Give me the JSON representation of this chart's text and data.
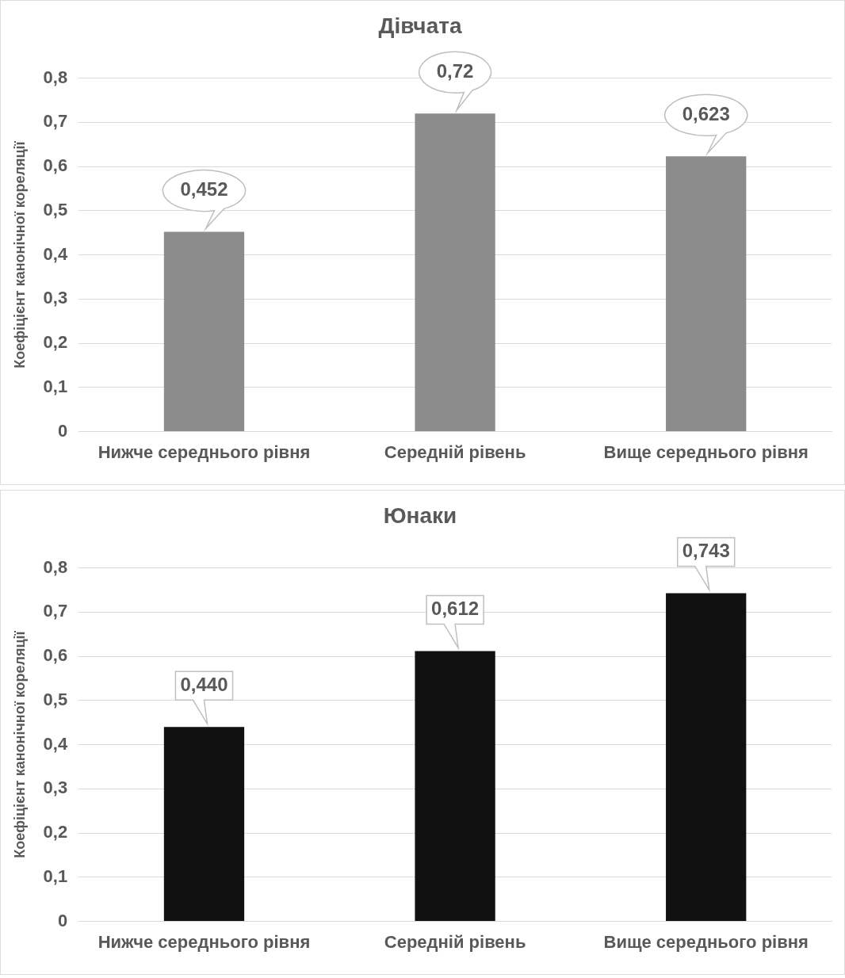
{
  "chart_data": [
    {
      "type": "bar",
      "title": "Дівчата",
      "ylabel": "Коефіцієнт канонічної кореляції",
      "categories": [
        "Нижче середнього рівня",
        "Середній рівень",
        "Вище середнього рівня"
      ],
      "values": [
        0.452,
        0.72,
        0.623
      ],
      "value_labels": [
        "0,452",
        "0,72",
        "0,623"
      ],
      "color": "#8c8c8c",
      "ylim": [
        0,
        0.8
      ],
      "yticks": [
        {
          "value": 0,
          "label": "0"
        },
        {
          "value": 0.1,
          "label": "0,1"
        },
        {
          "value": 0.2,
          "label": "0,2"
        },
        {
          "value": 0.3,
          "label": "0,3"
        },
        {
          "value": 0.4,
          "label": "0,4"
        },
        {
          "value": 0.5,
          "label": "0,5"
        },
        {
          "value": 0.6,
          "label": "0,6"
        },
        {
          "value": 0.7,
          "label": "0,7"
        },
        {
          "value": 0.8,
          "label": "0,8"
        }
      ],
      "grid": "y",
      "legend": false
    },
    {
      "type": "bar",
      "title": "Юнаки",
      "ylabel": "Коефіцієнт канонічної кореляції",
      "categories": [
        "Нижче середнього рівня",
        "Середній рівень",
        "Вище середнього рівня"
      ],
      "values": [
        0.44,
        0.612,
        0.743
      ],
      "value_labels": [
        "0,440",
        "0,612",
        "0,743"
      ],
      "color": "#111111",
      "ylim": [
        0,
        0.8
      ],
      "yticks": [
        {
          "value": 0,
          "label": "0"
        },
        {
          "value": 0.1,
          "label": "0,1"
        },
        {
          "value": 0.2,
          "label": "0,2"
        },
        {
          "value": 0.3,
          "label": "0,3"
        },
        {
          "value": 0.4,
          "label": "0,4"
        },
        {
          "value": 0.5,
          "label": "0,5"
        },
        {
          "value": 0.6,
          "label": "0,6"
        },
        {
          "value": 0.7,
          "label": "0,7"
        },
        {
          "value": 0.8,
          "label": "0,8"
        }
      ],
      "grid": "y",
      "legend": false
    }
  ]
}
